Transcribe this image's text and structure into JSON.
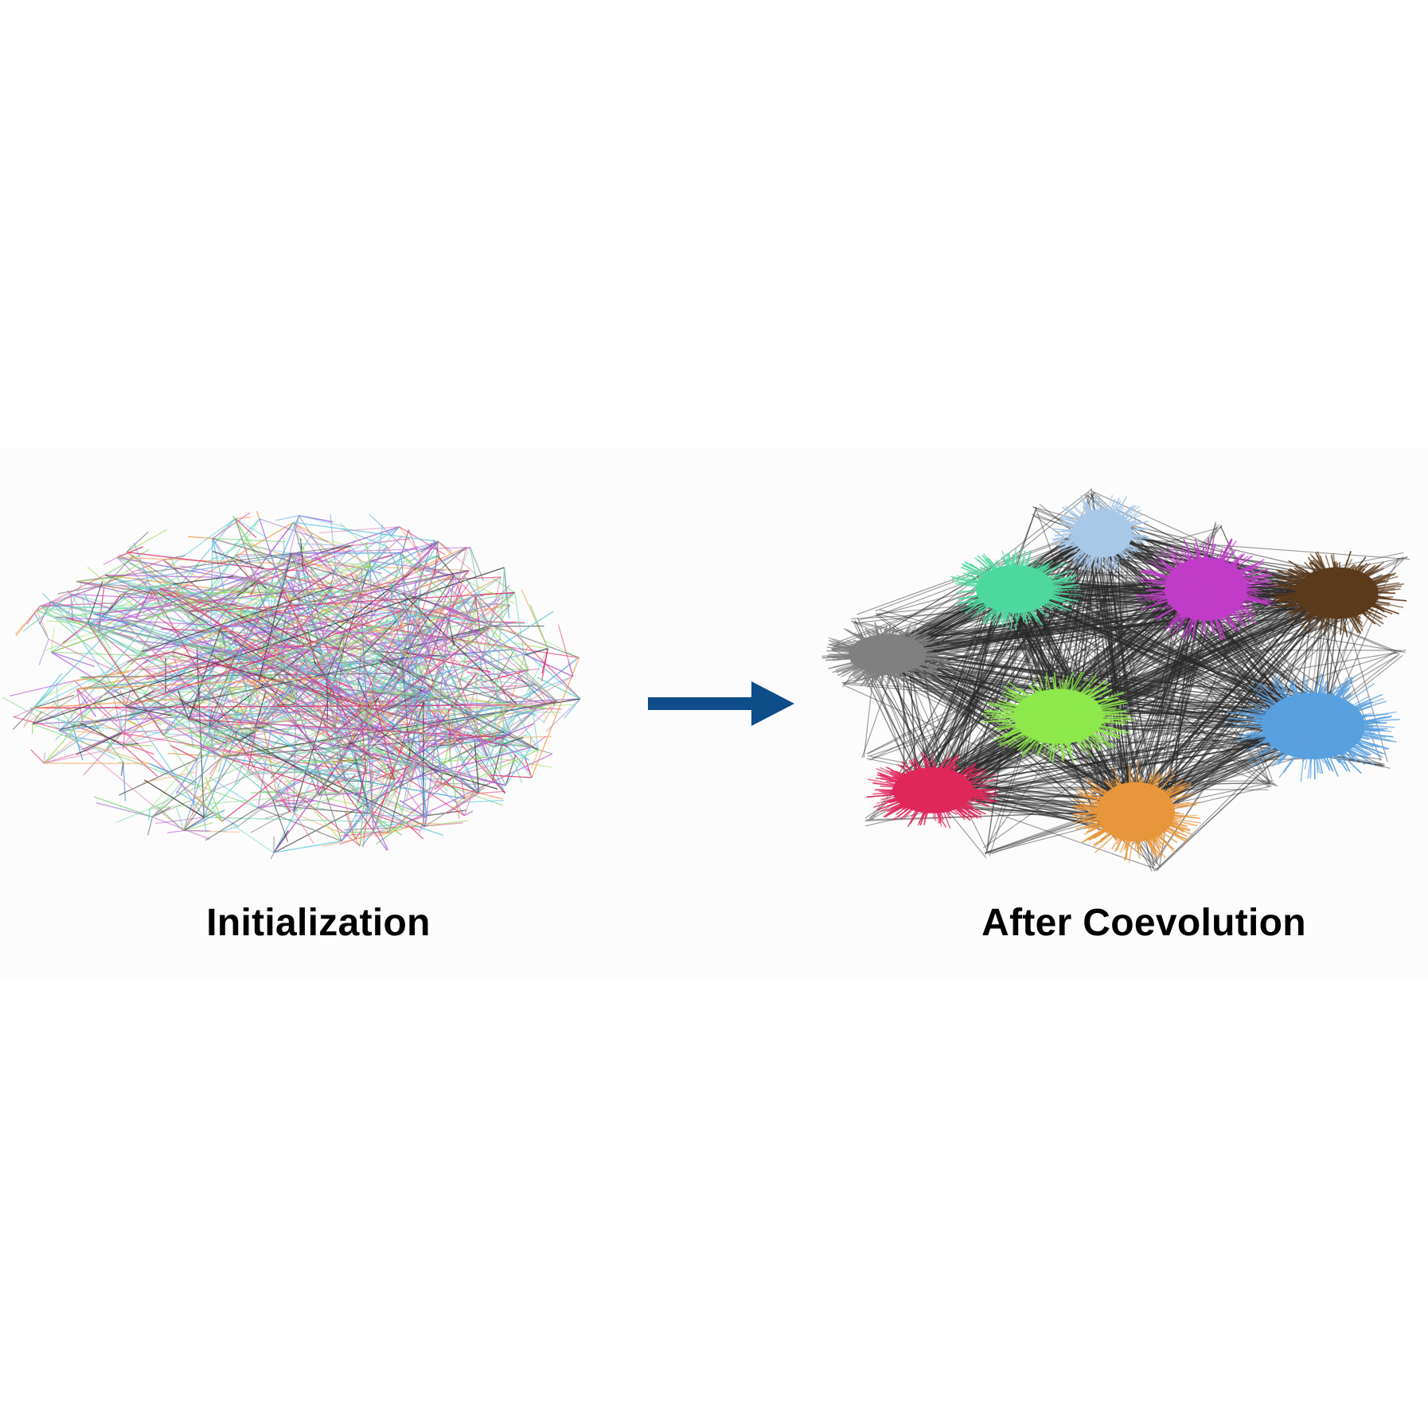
{
  "diagram": {
    "left_panel": {
      "caption": "Initialization",
      "edge_palette": [
        "#6fd6b0",
        "#b552d4",
        "#e0306a",
        "#f0a050",
        "#5aa0e0",
        "#9ee060",
        "#8a8a8a",
        "#3a3a3a",
        "#60c8e0",
        "#9b6ad8",
        "#7ad37a",
        "#e070b0"
      ]
    },
    "arrow": {
      "color": "#0f4c8a",
      "direction": "right"
    },
    "right_panel": {
      "caption": "After Coevolution",
      "inter_cluster_edge_color": "#2a2a2a",
      "clusters": [
        {
          "name": "light-blue-cluster",
          "color": "#a8c8e8"
        },
        {
          "name": "mint-cluster",
          "color": "#4fd8a0"
        },
        {
          "name": "magenta-cluster",
          "color": "#c03cc8"
        },
        {
          "name": "brown-cluster",
          "color": "#5c3a1c"
        },
        {
          "name": "gray-cluster",
          "color": "#808080"
        },
        {
          "name": "lime-cluster",
          "color": "#8ee84c"
        },
        {
          "name": "blue-cluster",
          "color": "#58a0e0"
        },
        {
          "name": "crimson-cluster",
          "color": "#e0285c"
        },
        {
          "name": "orange-cluster",
          "color": "#e8963c"
        }
      ]
    }
  }
}
